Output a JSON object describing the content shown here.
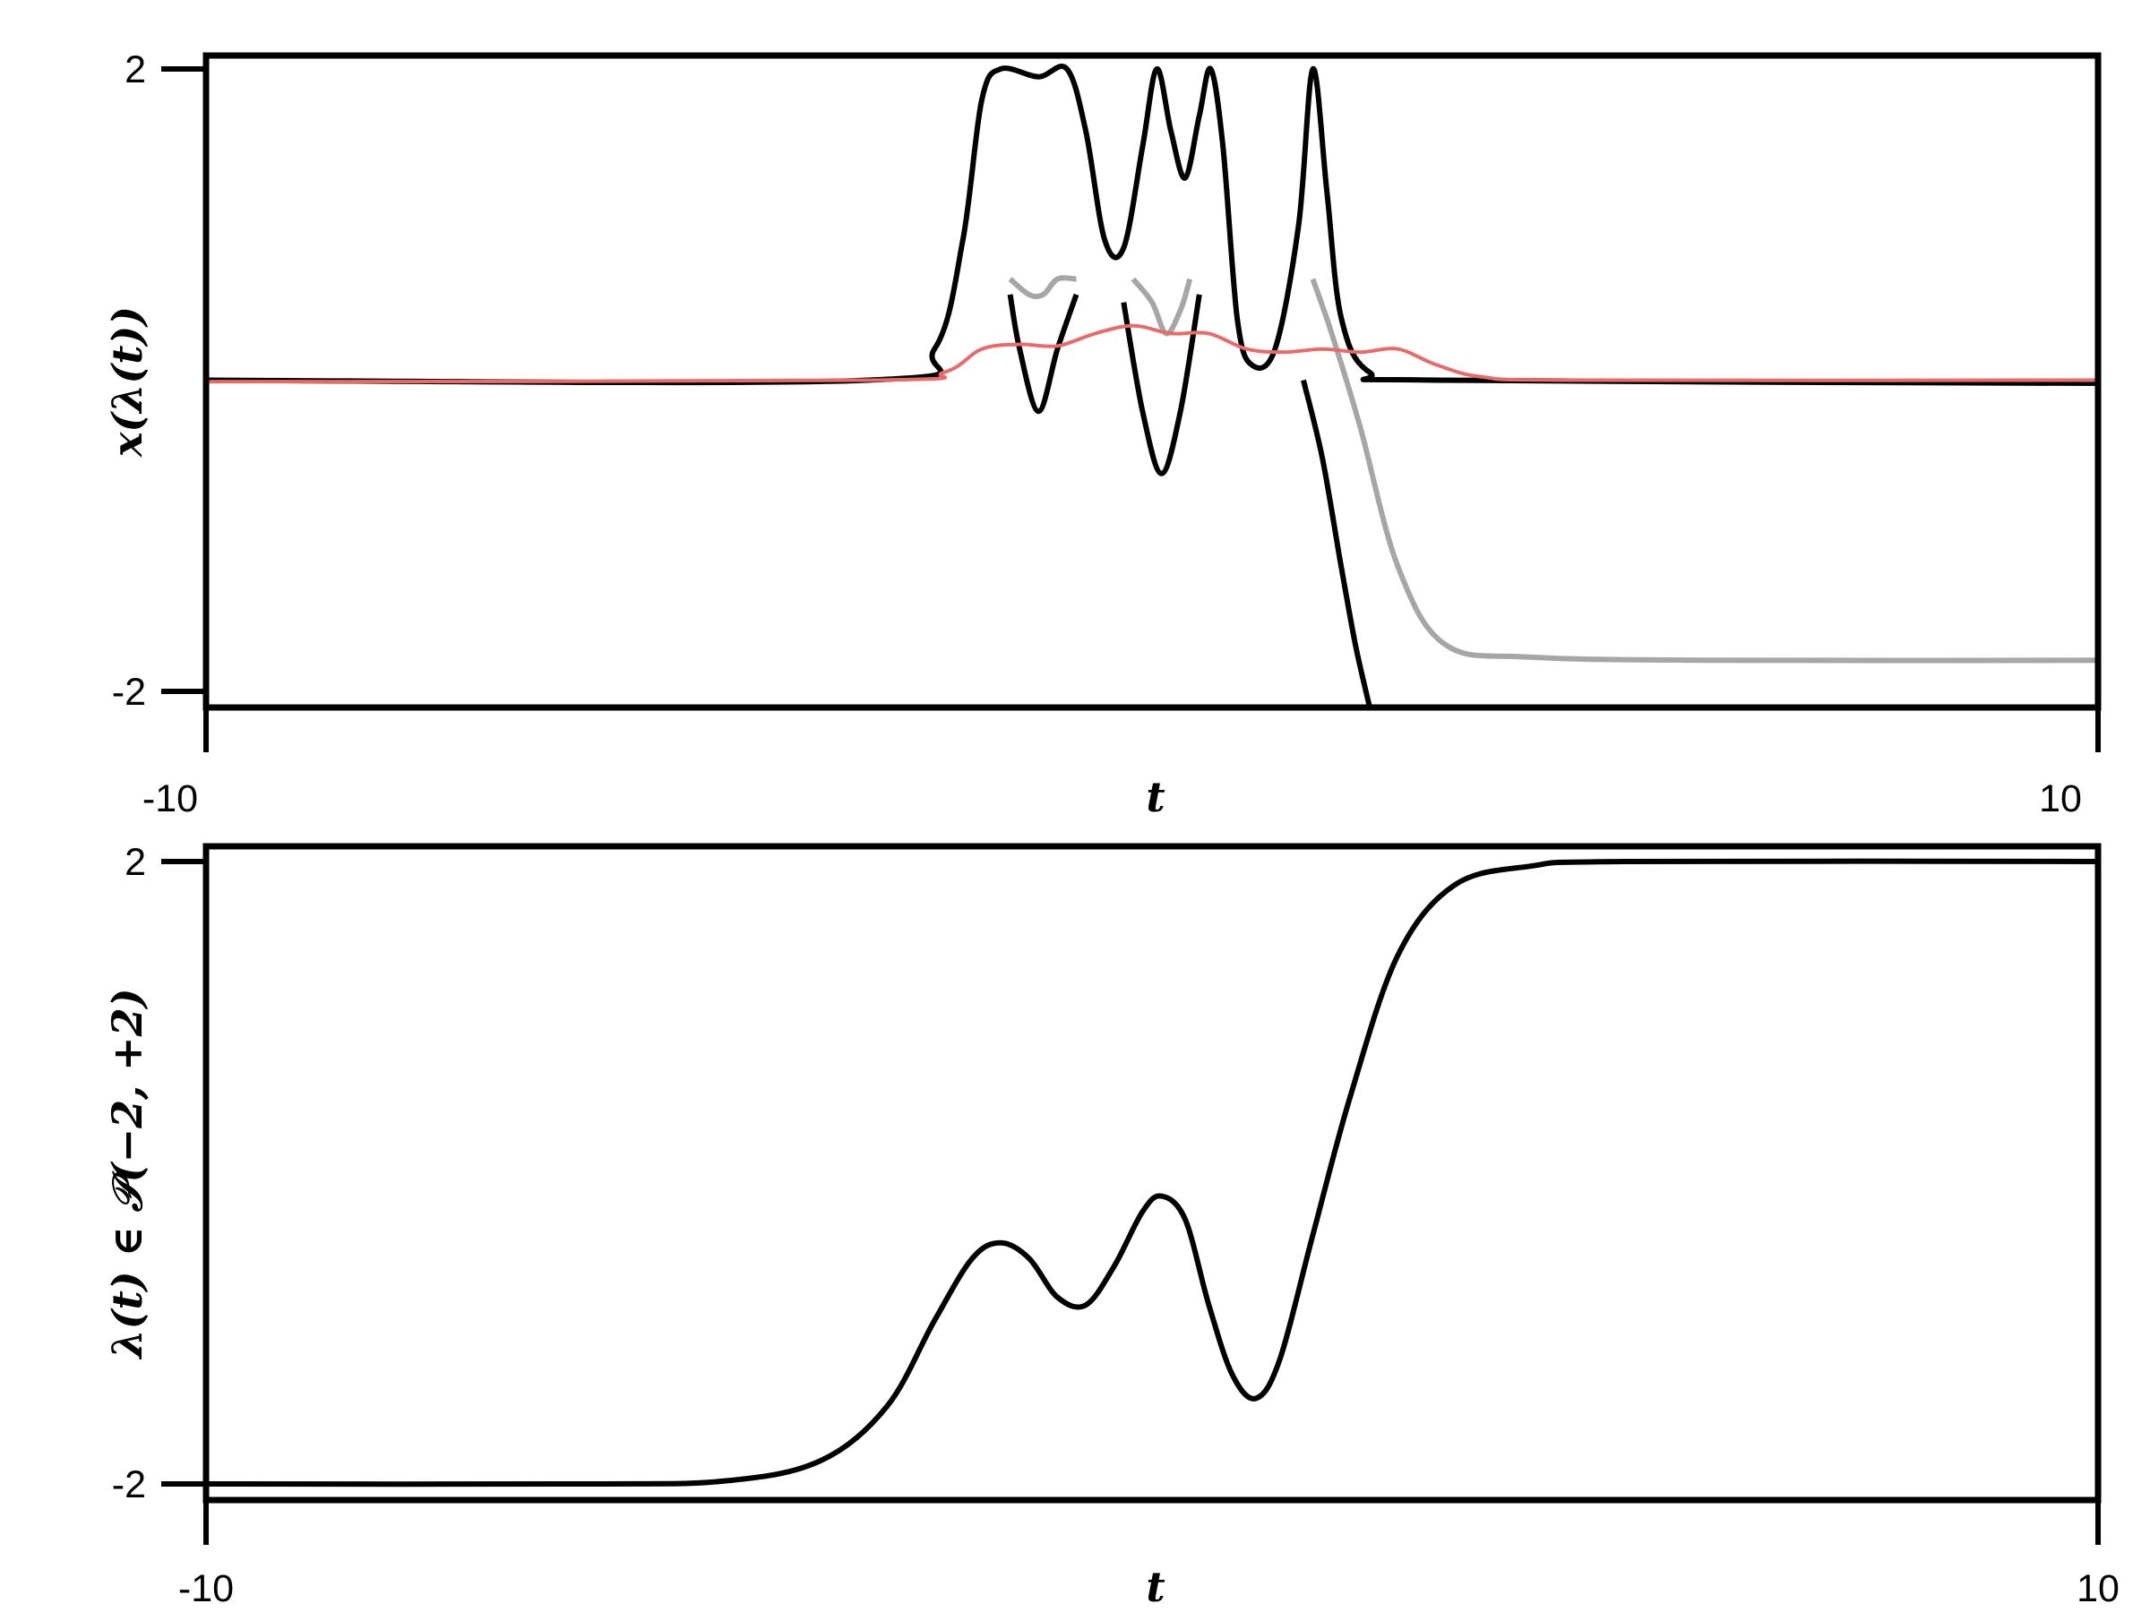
{
  "chart_data": [
    {
      "type": "line",
      "title": "",
      "xlabel": "t",
      "ylabel": "x(λ(t))",
      "xlim": [
        -10,
        10
      ],
      "ylim": [
        -2,
        2
      ],
      "x_tick_labels": [
        "-10",
        "10"
      ],
      "y_tick_labels": [
        "2",
        "-2"
      ],
      "grid": false,
      "series": [
        {
          "color": "#000000",
          "points": [
            [
              -10,
              0.0
            ],
            [
              -3.0,
              0.0
            ],
            [
              -2.3,
              0.2
            ],
            [
              -2.0,
              0.9
            ],
            [
              -1.8,
              1.8
            ],
            [
              -1.6,
              2.0
            ],
            [
              -1.2,
              1.95
            ],
            [
              -0.9,
              2.0
            ],
            [
              -0.7,
              1.6
            ],
            [
              -0.5,
              0.9
            ],
            [
              -0.3,
              0.85
            ],
            [
              -0.1,
              1.5
            ],
            [
              0.05,
              2.0
            ],
            [
              0.2,
              1.6
            ],
            [
              0.35,
              1.3
            ],
            [
              0.5,
              1.7
            ],
            [
              0.62,
              2.0
            ],
            [
              0.75,
              1.5
            ],
            [
              0.9,
              0.4
            ],
            [
              1.05,
              0.1
            ],
            [
              1.3,
              0.2
            ],
            [
              1.55,
              1.0
            ],
            [
              1.7,
              2.0
            ],
            [
              1.85,
              1.2
            ],
            [
              2.0,
              0.4
            ],
            [
              2.3,
              0.05
            ],
            [
              3.0,
              0.0
            ],
            [
              10,
              -0.02
            ]
          ]
        },
        {
          "color": "#000000",
          "points": [
            [
              -1.5,
              0.55
            ],
            [
              -1.4,
              0.2
            ],
            [
              -1.2,
              -0.2
            ],
            [
              -1.0,
              0.2
            ],
            [
              -0.8,
              0.55
            ]
          ]
        },
        {
          "color": "#000000",
          "points": [
            [
              -0.3,
              0.5
            ],
            [
              -0.1,
              -0.2
            ],
            [
              0.1,
              -0.6
            ],
            [
              0.3,
              -0.2
            ],
            [
              0.5,
              0.55
            ]
          ]
        },
        {
          "color": "#000000",
          "points": [
            [
              1.6,
              0.0
            ],
            [
              1.8,
              -0.5
            ],
            [
              2.0,
              -1.2
            ],
            [
              2.15,
              -1.7
            ],
            [
              2.3,
              -2.1
            ]
          ]
        },
        {
          "color": "#a6a6a6",
          "points": [
            [
              -1.5,
              0.65
            ],
            [
              -1.3,
              0.55
            ],
            [
              -1.15,
              0.55
            ],
            [
              -1.0,
              0.65
            ],
            [
              -0.8,
              0.65
            ]
          ]
        },
        {
          "color": "#a6a6a6",
          "points": [
            [
              -0.2,
              0.65
            ],
            [
              0.0,
              0.5
            ],
            [
              0.15,
              0.3
            ],
            [
              0.3,
              0.45
            ],
            [
              0.4,
              0.65
            ]
          ]
        },
        {
          "color": "#a6a6a6",
          "points": [
            [
              1.7,
              0.65
            ],
            [
              1.9,
              0.3
            ],
            [
              2.2,
              -0.3
            ],
            [
              2.6,
              -1.2
            ],
            [
              3.1,
              -1.7
            ],
            [
              4.0,
              -1.78
            ],
            [
              6.0,
              -1.8
            ],
            [
              10,
              -1.8
            ]
          ]
        },
        {
          "color": "#e86a6a",
          "points": [
            [
              -10,
              -0.01
            ],
            [
              -3.0,
              0.0
            ],
            [
              -2.2,
              0.05
            ],
            [
              -1.8,
              0.2
            ],
            [
              -1.4,
              0.23
            ],
            [
              -1.0,
              0.22
            ],
            [
              -0.6,
              0.3
            ],
            [
              -0.2,
              0.35
            ],
            [
              0.2,
              0.3
            ],
            [
              0.6,
              0.3
            ],
            [
              1.0,
              0.2
            ],
            [
              1.4,
              0.18
            ],
            [
              1.8,
              0.2
            ],
            [
              2.2,
              0.18
            ],
            [
              2.6,
              0.2
            ],
            [
              3.0,
              0.1
            ],
            [
              3.5,
              0.02
            ],
            [
              4.5,
              0.0
            ],
            [
              10,
              0.0
            ]
          ]
        }
      ]
    },
    {
      "type": "line",
      "title": "",
      "xlabel": "t",
      "ylabel": "λ(t) ∈ 𝒫(−2, +2)",
      "xlim": [
        -10,
        10
      ],
      "ylim": [
        -2,
        2
      ],
      "x_tick_labels": [
        "-10",
        "10"
      ],
      "y_tick_labels": [
        "2",
        "-2"
      ],
      "grid": false,
      "series": [
        {
          "color": "#000000",
          "points": [
            [
              -10,
              -2.0
            ],
            [
              -6.0,
              -2.0
            ],
            [
              -4.5,
              -1.98
            ],
            [
              -3.5,
              -1.85
            ],
            [
              -2.8,
              -1.5
            ],
            [
              -2.3,
              -0.95
            ],
            [
              -1.9,
              -0.55
            ],
            [
              -1.6,
              -0.45
            ],
            [
              -1.3,
              -0.55
            ],
            [
              -1.0,
              -0.8
            ],
            [
              -0.7,
              -0.85
            ],
            [
              -0.4,
              -0.6
            ],
            [
              -0.1,
              -0.25
            ],
            [
              0.1,
              -0.15
            ],
            [
              0.35,
              -0.3
            ],
            [
              0.6,
              -0.85
            ],
            [
              0.85,
              -1.3
            ],
            [
              1.1,
              -1.45
            ],
            [
              1.35,
              -1.2
            ],
            [
              1.7,
              -0.4
            ],
            [
              2.1,
              0.5
            ],
            [
              2.6,
              1.4
            ],
            [
              3.2,
              1.85
            ],
            [
              4.0,
              1.97
            ],
            [
              5.0,
              2.0
            ],
            [
              10,
              2.0
            ]
          ]
        }
      ]
    }
  ]
}
